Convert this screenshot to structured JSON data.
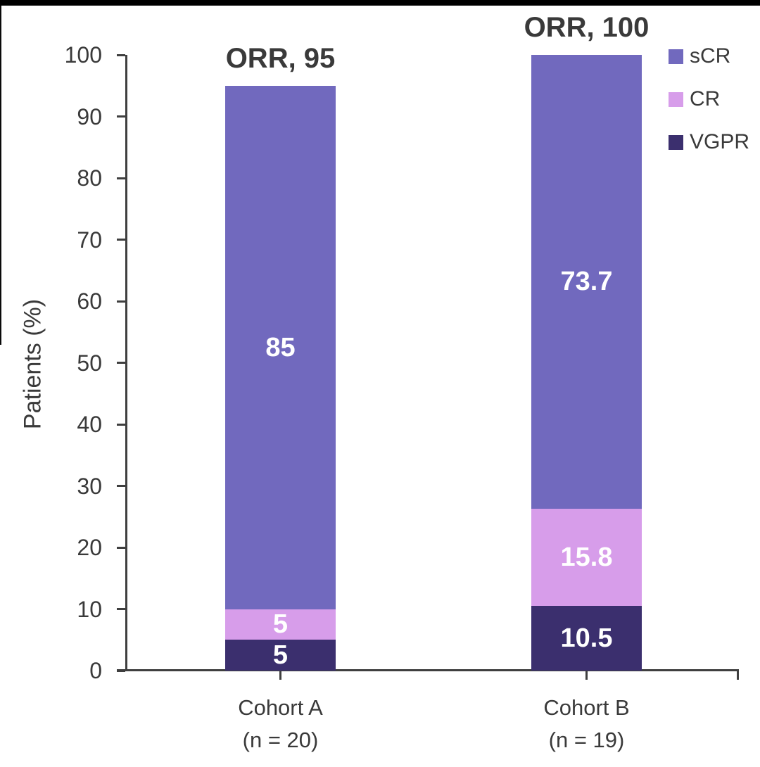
{
  "frame": {
    "top_border_color": "#000000",
    "left_border_color": "#0a0a0a"
  },
  "chart_data": {
    "type": "bar",
    "stacked": true,
    "ylabel": "Patients (%)",
    "ylim": [
      0,
      100
    ],
    "yticks": [
      0,
      10,
      20,
      30,
      40,
      50,
      60,
      70,
      80,
      90,
      100
    ],
    "grid": false,
    "legend_position": "top-right",
    "text_color": "#3a3a3a",
    "axis_color": "#3f3f3f",
    "bar_label_color": "#ffffff",
    "categories": [
      {
        "label": "Cohort A",
        "sublabel": "(n = 20)",
        "annotation": "ORR, 95",
        "total": 95
      },
      {
        "label": "Cohort B",
        "sublabel": "(n = 19)",
        "annotation": "ORR, 100",
        "total": 100
      }
    ],
    "series": [
      {
        "name": "sCR",
        "color": "#7169BE",
        "values": [
          85,
          73.7
        ],
        "labels": [
          "85",
          "73.7"
        ]
      },
      {
        "name": "CR",
        "color": "#D79DEA",
        "values": [
          5,
          15.8
        ],
        "labels": [
          "5",
          "15.8"
        ]
      },
      {
        "name": "VGPR",
        "color": "#3B2F6E",
        "values": [
          5,
          10.5
        ],
        "labels": [
          "5",
          "10.5"
        ]
      }
    ]
  }
}
